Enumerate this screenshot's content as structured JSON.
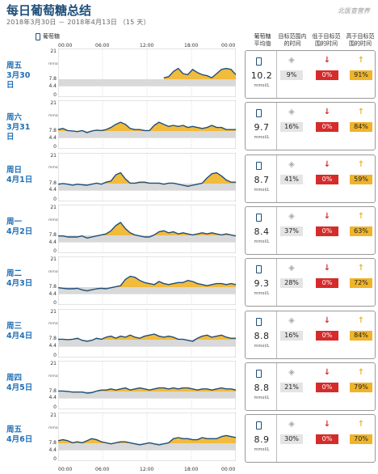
{
  "header": {
    "title": "每日葡萄糖总结",
    "subtitle": "2018年3月30日 － 2018年4月13日 （15 天）",
    "logo": "北医查营养"
  },
  "legend": {
    "label": "葡萄糖",
    "icon": "phone-icon"
  },
  "columns": {
    "avg": "葡萄糖\n平均值",
    "in": "目标范围内\n的时间",
    "low": "低于目标范\n围的时间",
    "high": "高于目标范\n围的时间"
  },
  "colors": {
    "line": "#1f4e79",
    "high_fill": "#f0b429",
    "band": "#d9d9d9",
    "low": "#d52b2b",
    "day_text": "#1f6fb5"
  },
  "chart_data": {
    "type": "line",
    "x_ticks": [
      "00:00",
      "06:00",
      "12:00",
      "18:00",
      "00:00"
    ],
    "y_ticks": [
      "21",
      "7.8",
      "4.4",
      "0"
    ],
    "y_unit": "mmol/L",
    "ylim": [
      0,
      21
    ],
    "target_range": [
      4.4,
      7.8
    ],
    "avg_unit": "mmol/L",
    "days": [
      {
        "week": "周五",
        "date": "3月30日",
        "avg": "10.2",
        "in": "9%",
        "low": "0%",
        "high": "91%",
        "y": [
          null,
          null,
          null,
          null,
          null,
          null,
          null,
          null,
          null,
          null,
          null,
          null,
          null,
          null,
          null,
          null,
          null,
          null,
          null,
          null,
          null,
          null,
          8.5,
          9.0,
          11.5,
          13.0,
          10.5,
          10.0,
          12.5,
          11.0,
          10.0,
          9.5,
          8.5,
          10.5,
          12.5,
          13.0,
          12.5,
          10.0
        ]
      },
      {
        "week": "周六",
        "date": "3月31日",
        "avg": "9.7",
        "in": "16%",
        "low": "0%",
        "high": "84%",
        "y": [
          8.5,
          9.0,
          8.0,
          7.8,
          7.5,
          8.0,
          7.0,
          7.8,
          8.2,
          8.0,
          8.5,
          9.5,
          11.0,
          12.0,
          11.0,
          9.0,
          8.5,
          8.5,
          8.0,
          8.0,
          10.5,
          12.0,
          11.0,
          10.0,
          10.5,
          10.0,
          10.5,
          9.5,
          10.0,
          9.5,
          9.0,
          9.5,
          10.5,
          9.5,
          9.5,
          8.5,
          8.5,
          8.5
        ]
      },
      {
        "week": "周日",
        "date": "4月1日",
        "avg": "8.7",
        "in": "41%",
        "low": "0%",
        "high": "59%",
        "y": [
          7.5,
          7.8,
          7.5,
          7.0,
          7.5,
          7.2,
          7.0,
          7.5,
          8.0,
          7.5,
          8.5,
          9.0,
          12.0,
          13.0,
          10.0,
          8.0,
          8.0,
          8.5,
          8.5,
          8.0,
          8.0,
          8.0,
          7.5,
          8.0,
          8.0,
          7.5,
          7.0,
          6.5,
          7.0,
          7.5,
          8.0,
          10.5,
          12.5,
          13.0,
          11.5,
          9.5,
          8.5,
          8.5
        ]
      },
      {
        "week": "周一",
        "date": "4月2日",
        "avg": "8.4",
        "in": "37%",
        "low": "0%",
        "high": "63%",
        "y": [
          7.5,
          7.5,
          7.0,
          7.0,
          7.0,
          7.5,
          6.5,
          7.0,
          7.5,
          8.0,
          8.5,
          10.0,
          12.5,
          14.0,
          11.0,
          9.0,
          8.0,
          7.5,
          7.0,
          7.0,
          8.0,
          9.5,
          10.0,
          9.0,
          9.5,
          8.5,
          9.0,
          8.5,
          8.0,
          8.5,
          9.0,
          8.5,
          9.0,
          8.5,
          8.0,
          8.5,
          8.0,
          7.5
        ]
      },
      {
        "week": "周二",
        "date": "4月3日",
        "avg": "9.3",
        "in": "28%",
        "low": "0%",
        "high": "72%",
        "y": [
          7.5,
          7.2,
          7.0,
          7.0,
          7.2,
          6.5,
          6.0,
          6.5,
          7.0,
          7.2,
          7.0,
          7.5,
          8.0,
          8.5,
          11.5,
          13.0,
          12.5,
          11.0,
          10.0,
          9.5,
          9.0,
          10.5,
          9.5,
          9.0,
          9.5,
          10.0,
          10.0,
          11.0,
          10.5,
          9.5,
          9.0,
          8.5,
          9.0,
          9.5,
          9.5,
          9.0,
          9.5,
          9.0
        ]
      },
      {
        "week": "周三",
        "date": "4月4日",
        "avg": "8.8",
        "in": "16%",
        "low": "0%",
        "high": "84%",
        "y": [
          8.0,
          8.0,
          7.8,
          8.0,
          8.5,
          7.5,
          7.0,
          7.5,
          8.5,
          8.0,
          9.0,
          9.5,
          8.5,
          9.5,
          9.0,
          10.0,
          9.0,
          8.5,
          9.5,
          10.0,
          10.5,
          9.5,
          9.0,
          9.5,
          9.0,
          8.0,
          8.0,
          7.5,
          7.0,
          8.5,
          9.5,
          10.0,
          9.0,
          9.5,
          10.0,
          9.0,
          8.5,
          8.5
        ]
      },
      {
        "week": "周四",
        "date": "4月5日",
        "avg": "8.8",
        "in": "21%",
        "low": "0%",
        "high": "79%",
        "y": [
          8.0,
          8.0,
          7.8,
          7.5,
          7.5,
          7.5,
          7.0,
          7.2,
          8.0,
          8.5,
          8.5,
          9.0,
          8.5,
          9.0,
          9.5,
          8.5,
          9.0,
          9.5,
          9.0,
          8.5,
          9.0,
          9.5,
          9.5,
          9.0,
          9.5,
          9.0,
          9.5,
          9.5,
          9.0,
          8.5,
          9.0,
          9.0,
          8.5,
          9.0,
          9.5,
          9.0,
          9.0,
          8.5
        ]
      },
      {
        "week": "周五",
        "date": "4月6日",
        "avg": "8.9",
        "in": "30%",
        "low": "0%",
        "high": "70%",
        "y": [
          9.0,
          9.5,
          9.0,
          8.0,
          8.5,
          8.0,
          9.0,
          10.0,
          9.5,
          8.5,
          8.0,
          7.5,
          8.0,
          8.5,
          8.5,
          8.0,
          7.5,
          7.0,
          7.5,
          8.0,
          7.5,
          7.0,
          7.5,
          8.0,
          10.0,
          10.5,
          10.0,
          10.0,
          9.5,
          9.5,
          10.5,
          10.0,
          10.0,
          10.0,
          11.0,
          11.5,
          11.0,
          10.5
        ]
      }
    ]
  }
}
